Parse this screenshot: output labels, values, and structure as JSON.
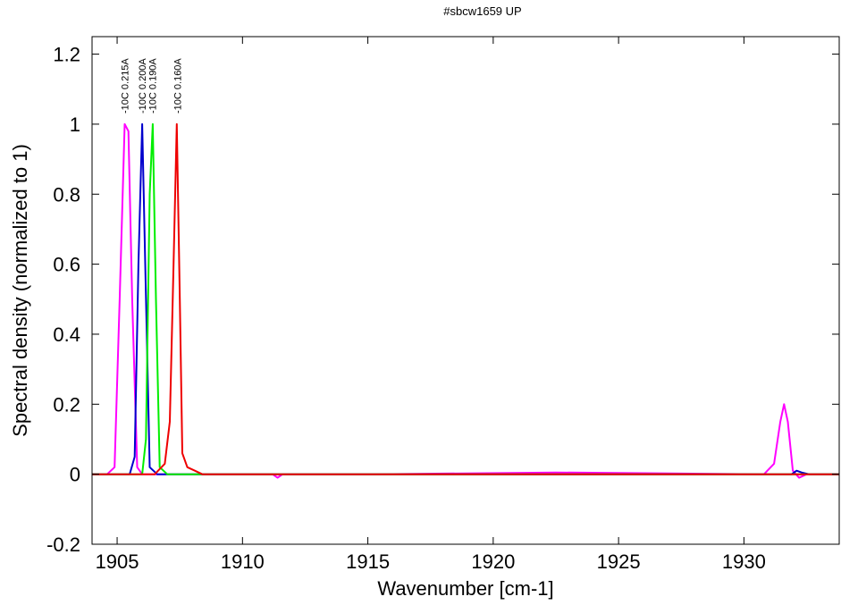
{
  "chart_data": {
    "type": "line",
    "title": "#sbcw1659 UP",
    "xlabel": "Wavenumber [cm-1]",
    "ylabel": "Spectral density (normalized to 1)",
    "xlim": [
      1904,
      1933.8
    ],
    "ylim": [
      -0.2,
      1.25
    ],
    "xticks": [
      1905,
      1910,
      1915,
      1920,
      1925,
      1930
    ],
    "xtick_labels": [
      "1905",
      "1910",
      "1915",
      "1920",
      "1925",
      "1930"
    ],
    "yticks": [
      -0.2,
      0,
      0.2,
      0.4,
      0.6,
      0.8,
      1,
      1.2
    ],
    "ytick_labels": [
      "-0.2",
      "0",
      "0.2",
      "0.4",
      "0.6",
      "0.8",
      "1",
      "1.2"
    ],
    "grid": false,
    "peak_labels": [
      {
        "text": "-10C 0.215A",
        "x": 1905.3
      },
      {
        "text": "-10C 0.200A",
        "x": 1906.0
      },
      {
        "text": "-10C 0.190A",
        "x": 1906.4
      },
      {
        "text": "-10C 0.160A",
        "x": 1907.4
      }
    ],
    "series": [
      {
        "color": "#ff00ff",
        "points": [
          [
            1904,
            0
          ],
          [
            1904.6,
            0
          ],
          [
            1904.9,
            0.02
          ],
          [
            1905.1,
            0.5
          ],
          [
            1905.3,
            1.0
          ],
          [
            1905.45,
            0.98
          ],
          [
            1905.6,
            0.5
          ],
          [
            1905.8,
            0.02
          ],
          [
            1906,
            0
          ],
          [
            1911.2,
            0
          ],
          [
            1911.4,
            -0.01
          ],
          [
            1911.6,
            0
          ],
          [
            1915.2,
            0
          ],
          [
            1922.5,
            0.005
          ],
          [
            1930.8,
            0
          ],
          [
            1931.2,
            0.03
          ],
          [
            1931.45,
            0.15
          ],
          [
            1931.6,
            0.2
          ],
          [
            1931.75,
            0.15
          ],
          [
            1931.95,
            0.01
          ],
          [
            1932.2,
            -0.01
          ],
          [
            1932.5,
            0
          ],
          [
            1933.8,
            0
          ]
        ]
      },
      {
        "color": "#0000cc",
        "points": [
          [
            1904,
            0
          ],
          [
            1905.5,
            0
          ],
          [
            1905.7,
            0.05
          ],
          [
            1905.85,
            0.6
          ],
          [
            1906.0,
            1.0
          ],
          [
            1906.12,
            0.6
          ],
          [
            1906.3,
            0.02
          ],
          [
            1906.6,
            0
          ],
          [
            1931.9,
            0
          ],
          [
            1932.1,
            0.01
          ],
          [
            1932.3,
            0.005
          ],
          [
            1932.6,
            0
          ],
          [
            1933.8,
            0
          ]
        ]
      },
      {
        "color": "#00ee00",
        "points": [
          [
            1904,
            0
          ],
          [
            1906,
            0
          ],
          [
            1906.15,
            0.1
          ],
          [
            1906.3,
            0.8
          ],
          [
            1906.42,
            1.0
          ],
          [
            1906.55,
            0.5
          ],
          [
            1906.7,
            0.02
          ],
          [
            1907,
            0
          ],
          [
            1933.8,
            0
          ]
        ]
      },
      {
        "color": "#ee0000",
        "points": [
          [
            1904,
            0
          ],
          [
            1906.5,
            0
          ],
          [
            1906.9,
            0.03
          ],
          [
            1907.1,
            0.15
          ],
          [
            1907.25,
            0.6
          ],
          [
            1907.38,
            1.0
          ],
          [
            1907.5,
            0.5
          ],
          [
            1907.6,
            0.06
          ],
          [
            1907.8,
            0.02
          ],
          [
            1908.1,
            0.01
          ],
          [
            1908.4,
            0
          ],
          [
            1933.8,
            0
          ]
        ]
      }
    ]
  }
}
